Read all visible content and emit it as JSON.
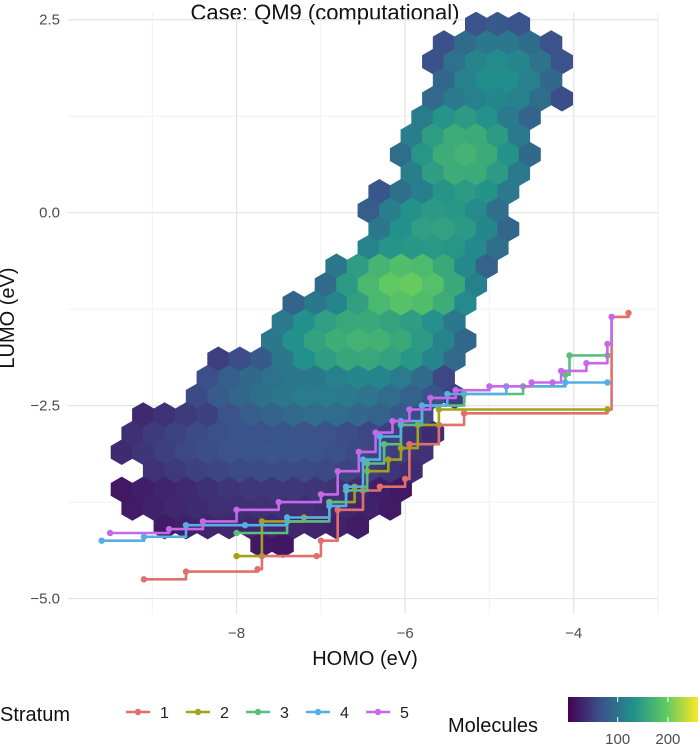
{
  "chart_data": {
    "type": "hexbin",
    "title": "Case: QM9 (computational)",
    "xlabel": "HOMO (eV)",
    "ylabel": "LUMO (eV)",
    "xlim": [
      -10.0,
      -3.0
    ],
    "ylim": [
      -5.2,
      2.6
    ],
    "x_ticks": [
      -8,
      -6,
      -4
    ],
    "x_tick_labels": [
      "−8",
      "−6",
      "−4"
    ],
    "y_ticks": [
      2.5,
      0.0,
      -2.5,
      -5.0
    ],
    "y_tick_labels": [
      "2.5",
      "0.0",
      "−2.5",
      "−5.0"
    ],
    "grid": true,
    "density_bands": [
      {
        "x_range": [
          -5.4,
          -4.4
        ],
        "y_range": [
          1.3,
          2.2
        ],
        "density": 130
      },
      {
        "x_range": [
          -5.8,
          -4.8
        ],
        "y_range": [
          0.2,
          1.3
        ],
        "density": 170
      },
      {
        "x_range": [
          -6.2,
          -5.0
        ],
        "y_range": [
          -0.6,
          0.2
        ],
        "density": 150
      },
      {
        "x_range": [
          -6.6,
          -5.4
        ],
        "y_range": [
          -1.3,
          -0.6
        ],
        "density": 200
      },
      {
        "x_range": [
          -7.4,
          -5.6
        ],
        "y_range": [
          -2.0,
          -1.3
        ],
        "density": 170
      },
      {
        "x_range": [
          -8.2,
          -5.8
        ],
        "y_range": [
          -2.6,
          -2.0
        ],
        "density": 110
      },
      {
        "x_range": [
          -9.0,
          -6.0
        ],
        "y_range": [
          -3.4,
          -2.6
        ],
        "density": 70
      },
      {
        "x_range": [
          -9.0,
          -6.4
        ],
        "y_range": [
          -4.0,
          -3.4
        ],
        "density": 40
      }
    ],
    "series": [
      {
        "name": "1",
        "color": "#e0706b",
        "points": [
          [
            -9.1,
            -4.75
          ],
          [
            -8.6,
            -4.65
          ],
          [
            -7.75,
            -4.62
          ],
          [
            -7.7,
            -4.45
          ],
          [
            -7.05,
            -4.45
          ],
          [
            -7.0,
            -4.25
          ],
          [
            -6.8,
            -3.85
          ],
          [
            -6.5,
            -3.6
          ],
          [
            -6.3,
            -3.55
          ],
          [
            -6.0,
            -3.45
          ],
          [
            -5.95,
            -3.0
          ],
          [
            -5.6,
            -2.75
          ],
          [
            -5.3,
            -2.6
          ],
          [
            -3.6,
            -2.55
          ],
          [
            -3.55,
            -1.35
          ],
          [
            -3.35,
            -1.3
          ]
        ]
      },
      {
        "name": "2",
        "color": "#a3a21b",
        "points": [
          [
            -8.0,
            -4.45
          ],
          [
            -7.7,
            -4.0
          ],
          [
            -7.2,
            -3.95
          ],
          [
            -6.9,
            -3.75
          ],
          [
            -6.6,
            -3.55
          ],
          [
            -6.45,
            -3.35
          ],
          [
            -6.2,
            -3.2
          ],
          [
            -6.05,
            -3.05
          ],
          [
            -5.85,
            -2.75
          ],
          [
            -5.6,
            -2.55
          ],
          [
            -3.6,
            -2.55
          ]
        ]
      },
      {
        "name": "3",
        "color": "#5cbd7e",
        "points": [
          [
            -8.0,
            -4.15
          ],
          [
            -7.4,
            -4.0
          ],
          [
            -6.9,
            -3.75
          ],
          [
            -6.7,
            -3.6
          ],
          [
            -6.45,
            -3.25
          ],
          [
            -6.25,
            -3.0
          ],
          [
            -6.05,
            -2.75
          ],
          [
            -5.8,
            -2.5
          ],
          [
            -5.3,
            -2.35
          ],
          [
            -4.6,
            -2.25
          ],
          [
            -4.1,
            -2.1
          ],
          [
            -4.05,
            -1.85
          ],
          [
            -3.6,
            -1.85
          ]
        ]
      },
      {
        "name": "4",
        "color": "#55aee5",
        "points": [
          [
            -9.6,
            -4.25
          ],
          [
            -9.1,
            -4.2
          ],
          [
            -8.6,
            -4.05
          ],
          [
            -7.9,
            -4.05
          ],
          [
            -7.4,
            -3.95
          ],
          [
            -6.9,
            -3.8
          ],
          [
            -6.7,
            -3.55
          ],
          [
            -6.5,
            -3.2
          ],
          [
            -6.3,
            -2.9
          ],
          [
            -6.05,
            -2.7
          ],
          [
            -5.8,
            -2.5
          ],
          [
            -5.5,
            -2.35
          ],
          [
            -4.8,
            -2.25
          ],
          [
            -4.1,
            -2.2
          ],
          [
            -3.6,
            -2.2
          ]
        ]
      },
      {
        "name": "5",
        "color": "#c569e8",
        "points": [
          [
            -9.5,
            -4.15
          ],
          [
            -8.8,
            -4.1
          ],
          [
            -8.4,
            -4.0
          ],
          [
            -8.0,
            -3.85
          ],
          [
            -7.5,
            -3.75
          ],
          [
            -7.0,
            -3.65
          ],
          [
            -6.8,
            -3.35
          ],
          [
            -6.55,
            -3.1
          ],
          [
            -6.35,
            -2.85
          ],
          [
            -6.15,
            -2.7
          ],
          [
            -5.95,
            -2.55
          ],
          [
            -5.7,
            -2.4
          ],
          [
            -5.4,
            -2.3
          ],
          [
            -5.0,
            -2.25
          ],
          [
            -4.5,
            -2.2
          ],
          [
            -4.25,
            -2.2
          ],
          [
            -4.15,
            -2.05
          ],
          [
            -3.85,
            -1.95
          ],
          [
            -3.6,
            -1.7
          ],
          [
            -3.55,
            -1.35
          ]
        ]
      }
    ],
    "legend": {
      "title": "Stratum",
      "labels": [
        "1",
        "2",
        "3",
        "4",
        "5"
      ],
      "placement": "bottom"
    },
    "colorbar": {
      "title": "Molecules",
      "ticks": [
        100,
        200
      ],
      "tick_labels": [
        "100",
        "200"
      ],
      "range": [
        1,
        260
      ],
      "colors": [
        "#440154",
        "#3b528b",
        "#21908c",
        "#5dc863",
        "#fde725"
      ]
    }
  }
}
